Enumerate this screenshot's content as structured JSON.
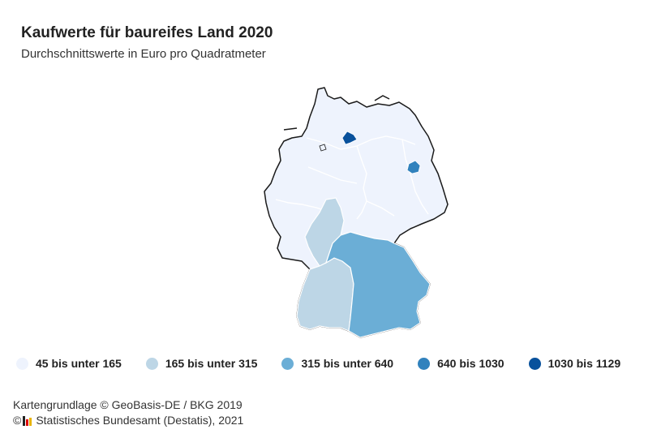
{
  "header": {
    "title": "Kaufwerte für baureifes Land 2020",
    "subtitle": "Durchschnittswerte in Euro pro Quadratmeter"
  },
  "legend": [
    {
      "label": "45 bis unter 165",
      "color": "#eef3fd"
    },
    {
      "label": "165 bis unter 315",
      "color": "#bdd6e6"
    },
    {
      "label": "315 bis unter 640",
      "color": "#6baed6"
    },
    {
      "label": "640 bis 1030",
      "color": "#3182bd"
    },
    {
      "label": "1030 bis 1129",
      "color": "#08519c"
    }
  ],
  "footer": {
    "source_line1": "Kartengrundlage © GeoBasis-DE / BKG 2019",
    "copyright_symbol": "©",
    "source_line2": "Statistisches Bundesamt (Destatis), 2021"
  },
  "map": {
    "outline_color": "#1a1a1a",
    "border_color": "#ffffff"
  }
}
